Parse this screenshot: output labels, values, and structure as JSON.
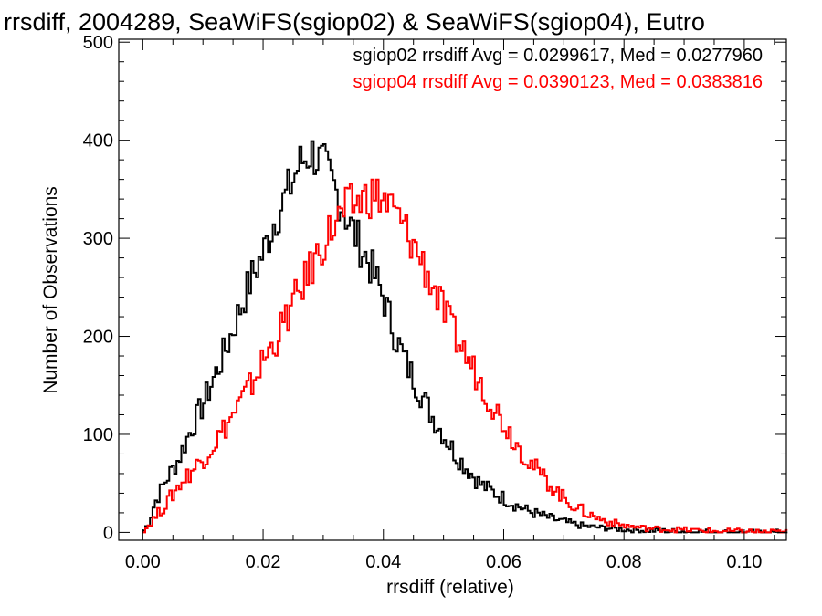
{
  "chart_data": {
    "type": "line",
    "title": "rrsdiff, 2004289, SeaWiFS(sgiop02) & SeaWiFS(sgiop04), Eutro",
    "xlabel": "rrsdiff (relative)",
    "ylabel": "Number of Observations",
    "xlim": [
      -0.004,
      0.107
    ],
    "ylim": [
      -8,
      503
    ],
    "x_ticks": [
      "0.00",
      "0.02",
      "0.04",
      "0.06",
      "0.08",
      "0.10"
    ],
    "x_tick_values": [
      0.0,
      0.02,
      0.04,
      0.06,
      0.08,
      0.1
    ],
    "y_ticks": [
      "0",
      "100",
      "200",
      "300",
      "400",
      "500"
    ],
    "y_tick_values": [
      0,
      100,
      200,
      300,
      400,
      500
    ],
    "grid": false,
    "legend_position": "top-right",
    "line_style": "histogram-steps",
    "series": [
      {
        "name": "sgiop02",
        "color": "#000000",
        "annotation": "sgiop02 rrsdiff Avg = 0.0299617, Med = 0.0277960",
        "points": [
          [
            0.0,
            0
          ],
          [
            0.001,
            10
          ],
          [
            0.002,
            30
          ],
          [
            0.004,
            55
          ],
          [
            0.006,
            75
          ],
          [
            0.008,
            105
          ],
          [
            0.01,
            130
          ],
          [
            0.012,
            160
          ],
          [
            0.014,
            190
          ],
          [
            0.016,
            225
          ],
          [
            0.018,
            258
          ],
          [
            0.02,
            285
          ],
          [
            0.022,
            320
          ],
          [
            0.024,
            345
          ],
          [
            0.026,
            375
          ],
          [
            0.028,
            388
          ],
          [
            0.03,
            375
          ],
          [
            0.032,
            350
          ],
          [
            0.034,
            320
          ],
          [
            0.036,
            295
          ],
          [
            0.038,
            270
          ],
          [
            0.04,
            240
          ],
          [
            0.042,
            200
          ],
          [
            0.044,
            170
          ],
          [
            0.046,
            145
          ],
          [
            0.048,
            120
          ],
          [
            0.05,
            100
          ],
          [
            0.052,
            80
          ],
          [
            0.054,
            65
          ],
          [
            0.056,
            50
          ],
          [
            0.058,
            42
          ],
          [
            0.06,
            35
          ],
          [
            0.062,
            28
          ],
          [
            0.064,
            22
          ],
          [
            0.066,
            18
          ],
          [
            0.068,
            14
          ],
          [
            0.07,
            11
          ],
          [
            0.072,
            8
          ],
          [
            0.074,
            6
          ],
          [
            0.076,
            5
          ],
          [
            0.078,
            4
          ],
          [
            0.08,
            3
          ],
          [
            0.084,
            2
          ],
          [
            0.088,
            1
          ],
          [
            0.092,
            1
          ],
          [
            0.096,
            0
          ],
          [
            0.1,
            0
          ],
          [
            0.106,
            0
          ]
        ]
      },
      {
        "name": "sgiop04",
        "color": "#ff0000",
        "annotation": "sgiop04 rrsdiff Avg = 0.0390123, Med = 0.0383816",
        "points": [
          [
            0.0,
            0
          ],
          [
            0.002,
            15
          ],
          [
            0.004,
            30
          ],
          [
            0.006,
            48
          ],
          [
            0.008,
            62
          ],
          [
            0.01,
            75
          ],
          [
            0.012,
            92
          ],
          [
            0.014,
            110
          ],
          [
            0.016,
            130
          ],
          [
            0.018,
            150
          ],
          [
            0.02,
            175
          ],
          [
            0.022,
            195
          ],
          [
            0.024,
            220
          ],
          [
            0.026,
            245
          ],
          [
            0.028,
            270
          ],
          [
            0.03,
            295
          ],
          [
            0.032,
            315
          ],
          [
            0.034,
            330
          ],
          [
            0.036,
            338
          ],
          [
            0.038,
            345
          ],
          [
            0.04,
            340
          ],
          [
            0.042,
            325
          ],
          [
            0.044,
            305
          ],
          [
            0.046,
            282
          ],
          [
            0.048,
            255
          ],
          [
            0.05,
            225
          ],
          [
            0.052,
            200
          ],
          [
            0.054,
            178
          ],
          [
            0.056,
            155
          ],
          [
            0.058,
            132
          ],
          [
            0.06,
            112
          ],
          [
            0.062,
            92
          ],
          [
            0.064,
            75
          ],
          [
            0.066,
            60
          ],
          [
            0.068,
            47
          ],
          [
            0.07,
            35
          ],
          [
            0.072,
            26
          ],
          [
            0.074,
            19
          ],
          [
            0.076,
            14
          ],
          [
            0.078,
            10
          ],
          [
            0.08,
            7
          ],
          [
            0.084,
            4
          ],
          [
            0.088,
            3
          ],
          [
            0.092,
            2
          ],
          [
            0.096,
            1
          ],
          [
            0.1,
            1
          ],
          [
            0.106,
            0
          ]
        ]
      }
    ]
  }
}
